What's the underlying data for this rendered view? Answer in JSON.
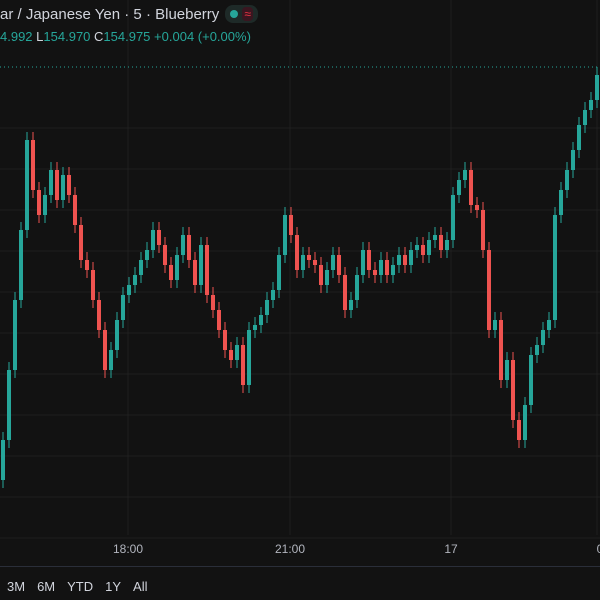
{
  "header": {
    "title": "ar / Japanese Yen · 5 · Blueberry",
    "status_icons": [
      "market-open-dot-icon",
      "wave-icon"
    ],
    "ohlc": {
      "high_partial": "4.992",
      "low_label": "L",
      "low": "154.970",
      "close_label": "C",
      "close": "154.975",
      "change": "+0.004 (+0.00%)"
    }
  },
  "ranges": [
    "3M",
    "6M",
    "YTD",
    "1Y",
    "All"
  ],
  "colors": {
    "background": "#121212",
    "up": "#26a69a",
    "down": "#ef5350",
    "grid": "#1f1f1f",
    "price_line": "#26a69a"
  },
  "chart_data": {
    "type": "candlestick",
    "interval": "5",
    "x_tick_labels": [
      "18:00",
      "21:00",
      "17",
      "0"
    ],
    "last_price": 154.975,
    "grid": true,
    "first_open": 154.562,
    "closes": [
      154.602,
      154.672,
      154.742,
      154.812,
      154.902,
      154.852,
      154.827,
      154.847,
      154.872,
      154.842,
      154.867,
      154.847,
      154.817,
      154.782,
      154.772,
      154.742,
      154.712,
      154.672,
      154.692,
      154.722,
      154.747,
      154.757,
      154.767,
      154.782,
      154.792,
      154.812,
      154.797,
      154.777,
      154.762,
      154.787,
      154.807,
      154.782,
      154.757,
      154.797,
      154.747,
      154.732,
      154.712,
      154.692,
      154.682,
      154.697,
      154.657,
      154.712,
      154.717,
      154.727,
      154.742,
      154.752,
      154.787,
      154.827,
      154.807,
      154.772,
      154.787,
      154.782,
      154.777,
      154.757,
      154.772,
      154.787,
      154.767,
      154.732,
      154.742,
      154.767,
      154.792,
      154.772,
      154.767,
      154.782,
      154.767,
      154.777,
      154.787,
      154.777,
      154.792,
      154.797,
      154.787,
      154.802,
      154.807,
      154.792,
      154.802,
      154.847,
      154.862,
      154.872,
      154.837,
      154.832,
      154.792,
      154.712,
      154.722,
      154.662,
      154.682,
      154.622,
      154.602,
      154.637,
      154.687,
      154.697,
      154.712,
      154.722,
      154.827,
      154.852,
      154.872,
      154.892,
      154.917,
      154.932,
      154.942,
      154.967
    ]
  }
}
